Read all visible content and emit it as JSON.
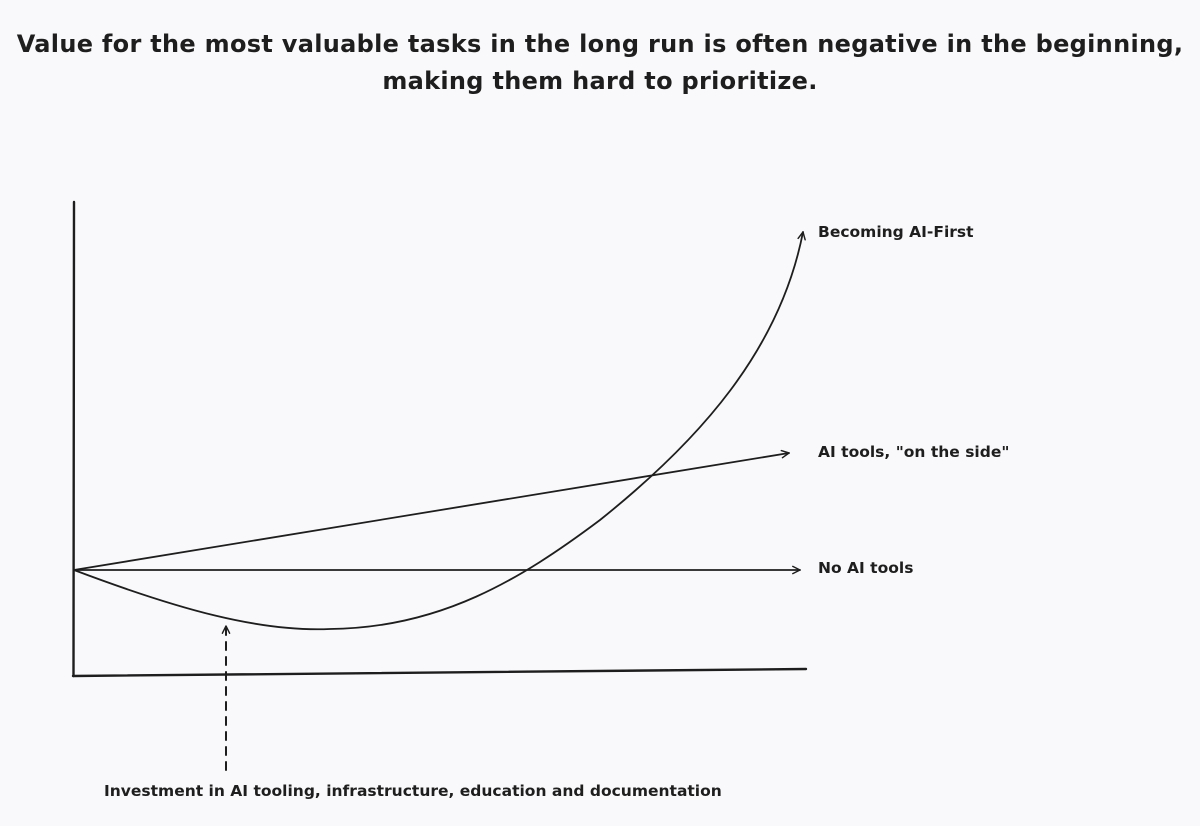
{
  "title": {
    "line1": "Value for the most valuable tasks in the long run is often negative in the beginning,",
    "line2": "making them hard to prioritize."
  },
  "series": [
    {
      "id": "ai-first",
      "label": "Becoming AI-First"
    },
    {
      "id": "ai-side",
      "label": "AI tools, \"on the side\""
    },
    {
      "id": "no-ai",
      "label": "No AI tools"
    }
  ],
  "annotation": {
    "label": "Investment in AI tooling, infrastructure, education and documentation"
  },
  "colors": {
    "background": "#f9f9fb",
    "ink": "#1e1e1e"
  }
}
